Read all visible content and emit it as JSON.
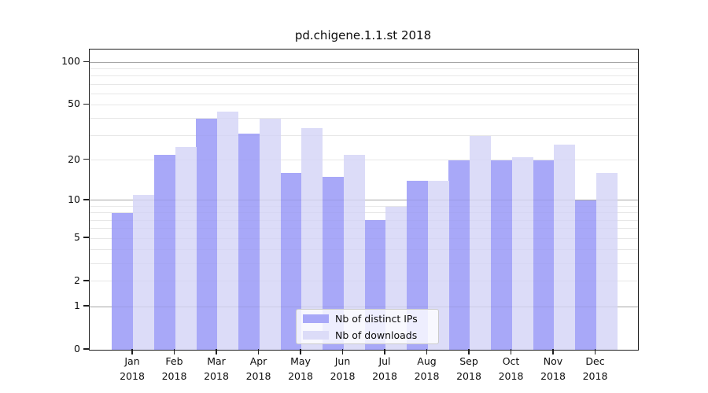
{
  "title": "pd.chigene.1.1.st 2018",
  "colors": {
    "distinct_ips_bar": "#a8a8f8",
    "downloads_bar": "#dcdcf8",
    "axis": "#1f1f1f",
    "minor_gridline": "#ececec",
    "major_gridline": "#b4b4b4",
    "legend_border": "#cbcbcb",
    "legend_background": "rgba(255,255,255,0.8)",
    "tick_label": "#0d0d0d"
  },
  "chart_data": {
    "type": "bar",
    "title": "pd.chigene.1.1.st 2018",
    "categories": [
      "Jan",
      "Feb",
      "Mar",
      "Apr",
      "May",
      "Jun",
      "Jul",
      "Aug",
      "Sep",
      "Oct",
      "Nov",
      "Dec"
    ],
    "category_year": "2018",
    "series": [
      {
        "name": "Nb of distinct IPs",
        "color": "#a8a8f8",
        "values": [
          8,
          22,
          40,
          31,
          16,
          15,
          7,
          14,
          20,
          20,
          20,
          10
        ]
      },
      {
        "name": "Nb of downloads",
        "color": "#dcdcf8",
        "values": [
          11,
          25,
          45,
          40,
          34,
          22,
          9,
          14,
          30,
          21,
          26,
          16
        ]
      }
    ],
    "xlabel": "",
    "ylabel": "",
    "yscale": "log1p",
    "ylim": [
      0,
      123
    ],
    "yticks": [
      0,
      1,
      2,
      5,
      10,
      20,
      50,
      100
    ],
    "minor_gridlines": [
      2,
      3,
      4,
      5,
      6,
      7,
      8,
      9,
      20,
      30,
      40,
      50,
      60,
      70,
      80,
      90
    ],
    "major_gridlines": [
      1,
      10,
      100
    ],
    "grid": true,
    "legend_position": "lower-center"
  }
}
